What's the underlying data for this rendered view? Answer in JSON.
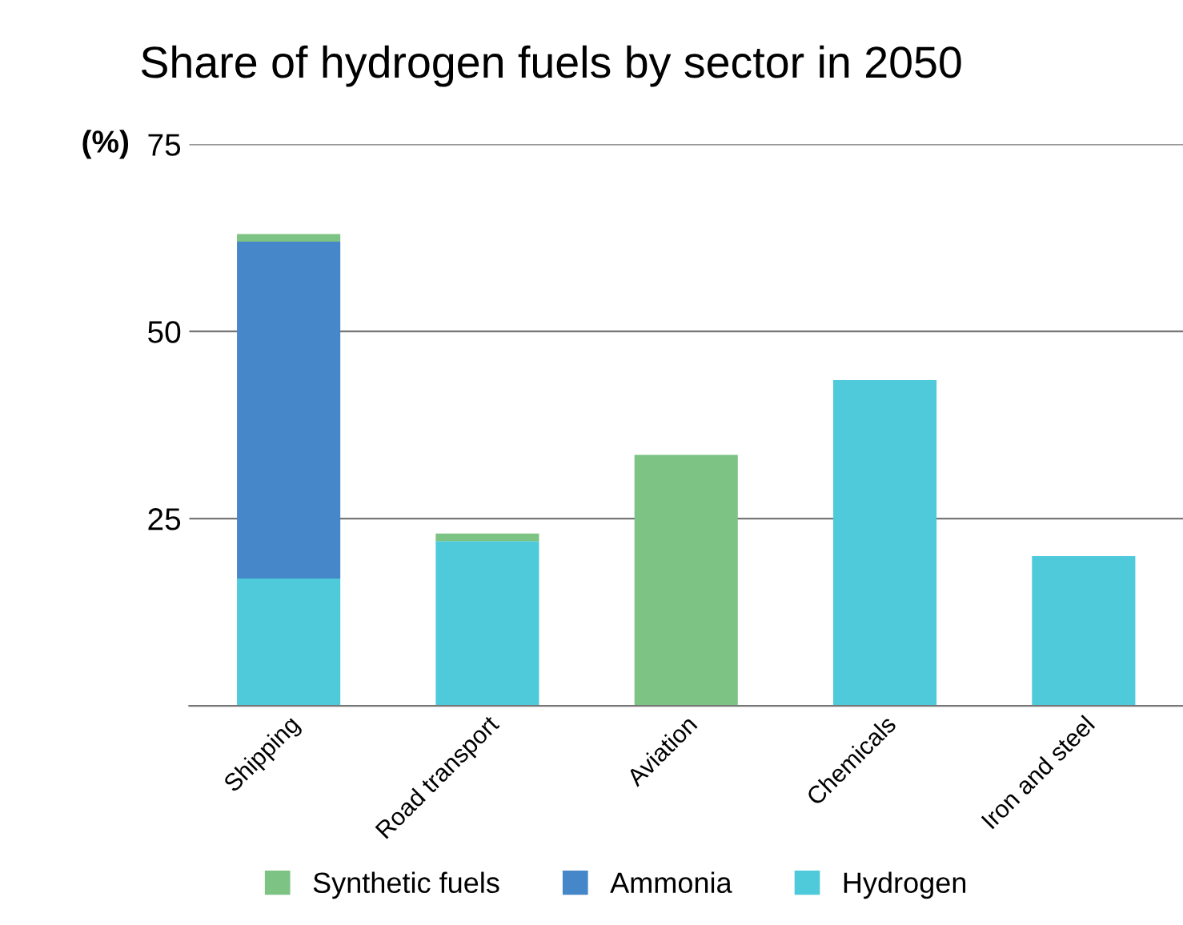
{
  "chart_data": {
    "type": "bar",
    "title": "Share of hydrogen fuels by sector in 2050",
    "ylabel": "(%)",
    "categories": [
      "Shipping",
      "Road transport",
      "Aviation",
      "Chemicals",
      "Iron and steel"
    ],
    "stacked": true,
    "series": [
      {
        "name": "Hydrogen",
        "color": "#4ecadb",
        "values": [
          17,
          22,
          0,
          43.5,
          20
        ]
      },
      {
        "name": "Ammonia",
        "color": "#4587c8",
        "values": [
          45,
          0,
          0,
          0,
          0
        ]
      },
      {
        "name": "Synthetic fuels",
        "color": "#7dc383",
        "values": [
          1,
          1,
          33.5,
          0,
          0
        ]
      }
    ],
    "ylim": [
      0,
      75
    ],
    "yticks": [
      {
        "value": 0,
        "label": null
      },
      25,
      50,
      75
    ],
    "grid": "y",
    "legend": "bottom"
  }
}
